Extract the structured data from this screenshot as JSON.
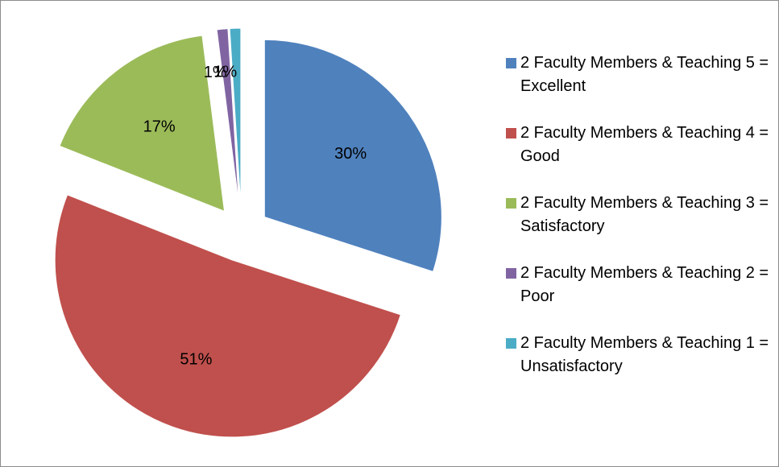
{
  "chart_data": {
    "type": "pie",
    "categories": [
      "2 Faculty Members & Teaching 5 = Excellent",
      "2 Faculty Members & Teaching 4 = Good",
      "2 Faculty Members & Teaching 3 = Satisfactory",
      "2 Faculty Members & Teaching 2 = Poor",
      "2 Faculty Members & Teaching 1 = Unsatisfactory"
    ],
    "values": [
      30,
      51,
      17,
      1,
      1
    ],
    "value_labels": [
      "30%",
      "51%",
      "17%",
      "1%",
      "1%"
    ],
    "colors": [
      "#4f81bd",
      "#c0504d",
      "#9bbb59",
      "#8064a2",
      "#4bacc6"
    ],
    "exploded": true,
    "legend": "right"
  }
}
